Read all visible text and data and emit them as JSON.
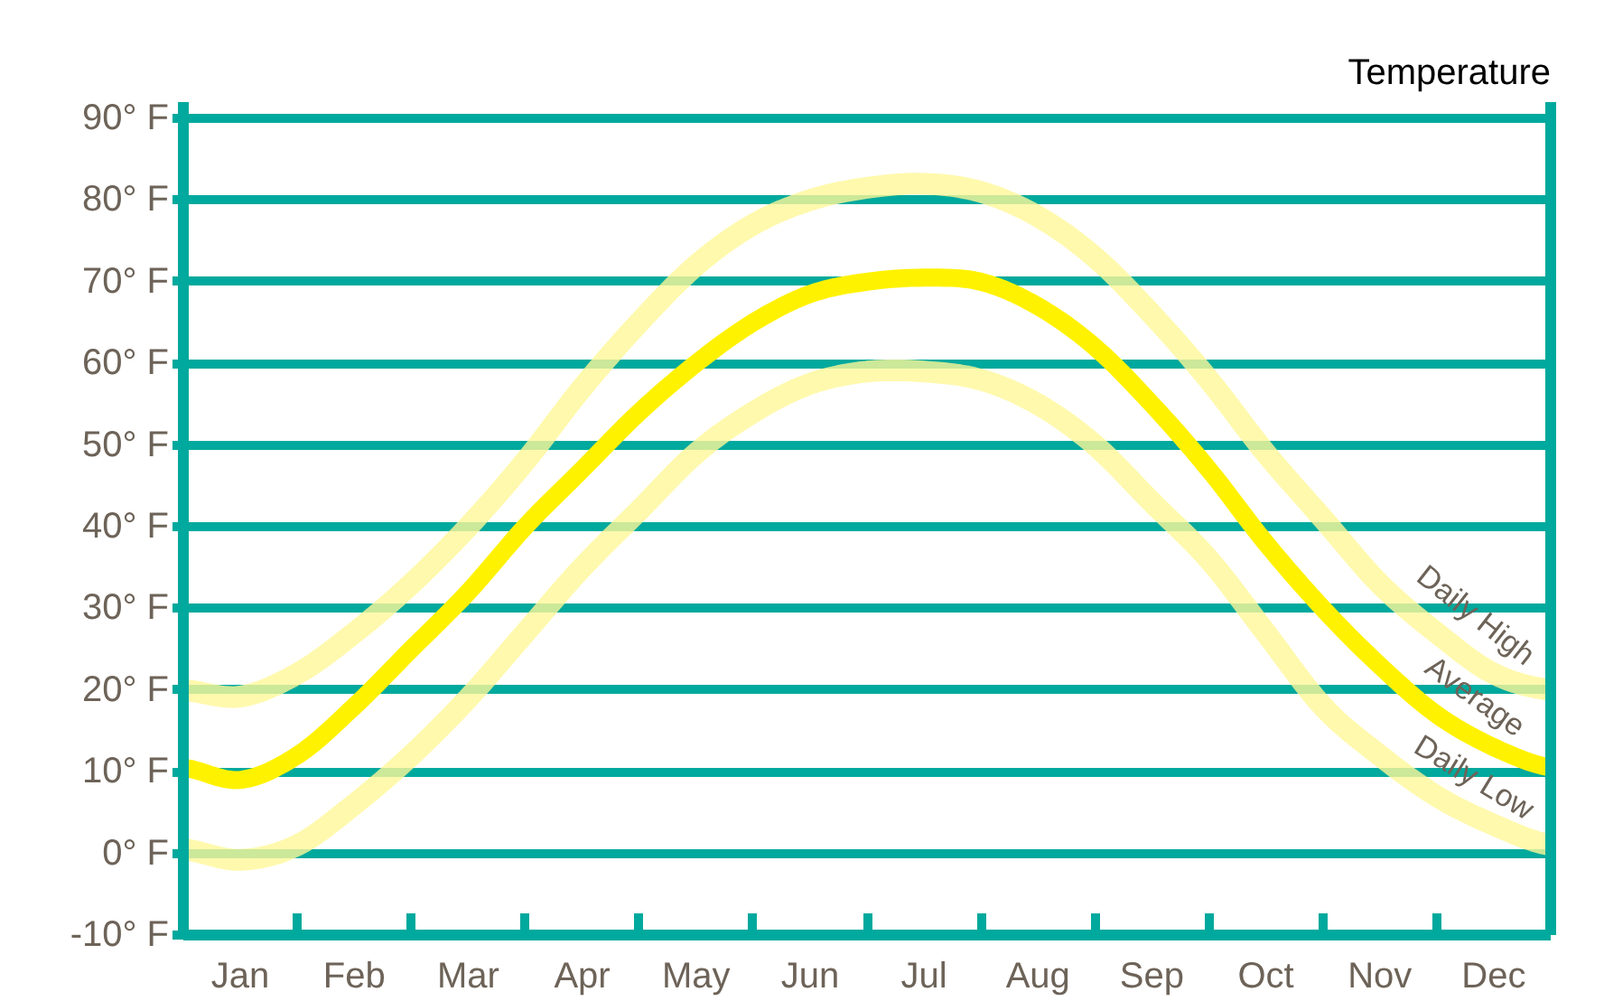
{
  "chart_data": {
    "type": "line",
    "title": "Temperature",
    "categories": [
      null,
      "Jan",
      null,
      "Feb",
      null,
      "Mar",
      null,
      "Apr",
      null,
      "May",
      null,
      "Jun",
      null,
      "Jul",
      null,
      "Aug",
      null,
      "Sep",
      null,
      "Oct",
      null,
      "Nov",
      null,
      "Dec",
      null
    ],
    "series": [
      {
        "name": "Daily High",
        "color": "#fff799",
        "values": [
          20,
          19.2,
          22,
          27,
          33,
          40,
          48,
          57,
          65,
          72,
          77,
          80,
          81.5,
          82,
          81,
          78,
          73,
          66,
          58,
          49,
          41,
          33,
          27,
          22,
          20
        ]
      },
      {
        "name": "Average",
        "color": "#fff200",
        "values": [
          10.5,
          9,
          12,
          18,
          25,
          32,
          40,
          47,
          54,
          60,
          65,
          68.5,
          70,
          70.5,
          70,
          67,
          62,
          55,
          47,
          38,
          30,
          23,
          17,
          13,
          10.5
        ]
      },
      {
        "name": "Daily Low",
        "color": "#fff799",
        "values": [
          0.5,
          -0.8,
          1,
          6,
          12,
          19,
          27,
          35,
          42,
          49,
          54,
          57.5,
          59,
          59,
          58,
          55,
          50,
          43,
          36,
          27,
          18,
          12,
          7,
          3.5,
          1
        ]
      }
    ],
    "ylim": [
      -10,
      92
    ],
    "yticks": [
      {
        "value": -10,
        "label": "-10° F"
      },
      {
        "value": 0,
        "label": "0° F"
      },
      {
        "value": 10,
        "label": "10° F"
      },
      {
        "value": 20,
        "label": "20° F"
      },
      {
        "value": 30,
        "label": "30° F"
      },
      {
        "value": 40,
        "label": "40° F"
      },
      {
        "value": 50,
        "label": "50° F"
      },
      {
        "value": 60,
        "label": "60° F"
      },
      {
        "value": 70,
        "label": "70° F"
      },
      {
        "value": 80,
        "label": "80° F"
      },
      {
        "value": 90,
        "label": "90° F"
      }
    ],
    "grid": "y"
  }
}
